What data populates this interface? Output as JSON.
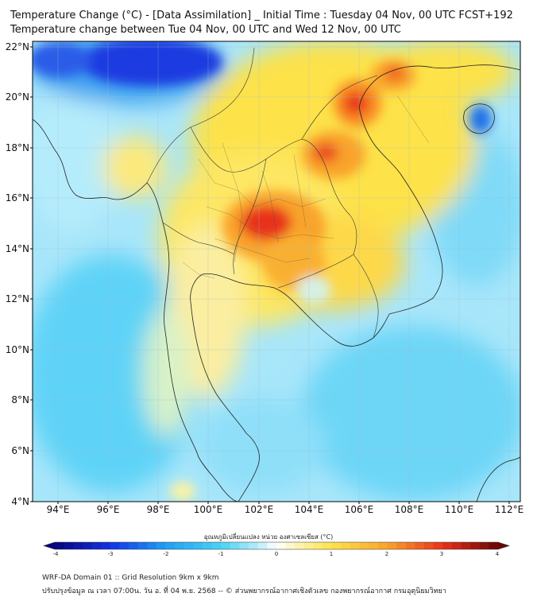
{
  "title": {
    "line1": "Temperature Change (°C) - [Data Assimilation] _ Initial Time : Tuesday 04 Nov, 00 UTC FCST+192",
    "line2": "Temperature change between Tue 04 Nov, 00 UTC and Wed 12 Nov, 00 UTC"
  },
  "map": {
    "lat_labels": [
      "22°N",
      "20°N",
      "18°N",
      "16°N",
      "14°N",
      "12°N",
      "10°N",
      "8°N",
      "6°N",
      "4°N"
    ],
    "lon_labels": [
      "94°E",
      "96°E",
      "98°E",
      "100°E",
      "102°E",
      "104°E",
      "106°E",
      "108°E",
      "110°E",
      "112°E"
    ],
    "lat_values": [
      22,
      20,
      18,
      16,
      14,
      12,
      10,
      8,
      6,
      4
    ],
    "lon_values": [
      94,
      96,
      98,
      100,
      102,
      104,
      106,
      108,
      110,
      112
    ]
  },
  "colorbar": {
    "label": "อุณหภูมิเปลี่ยนแปลง หน่วย องศาเซลเซียส (°C)",
    "ticks": [
      "-4",
      "-3",
      "-2",
      "-1",
      "0",
      "1",
      "2",
      "3",
      "4"
    ],
    "min": -4,
    "max": 4
  },
  "footer": {
    "line1": "WRF-DA Domain 01 :: Grid Resolution 9km x 9km",
    "line2": "ปรับปรุงข้อมูล ณ เวลา 07:00น. วัน อ. ที่ 04 พ.ย. 2568 -- © ส่วนพยากรณ์อากาศเชิงตัวเลข กองพยากรณ์อากาศ กรมอุตุนิยมวิทยา"
  },
  "colors": {
    "deep_blue": "#0a1fd6",
    "cyan": "#33ccf5",
    "light_cyan": "#b7ecfb",
    "pale_yellow": "#fdf3a0",
    "yellow": "#fde24a",
    "orange": "#f9a32a",
    "red": "#e8321c",
    "dark_red": "#7a0a0a"
  }
}
